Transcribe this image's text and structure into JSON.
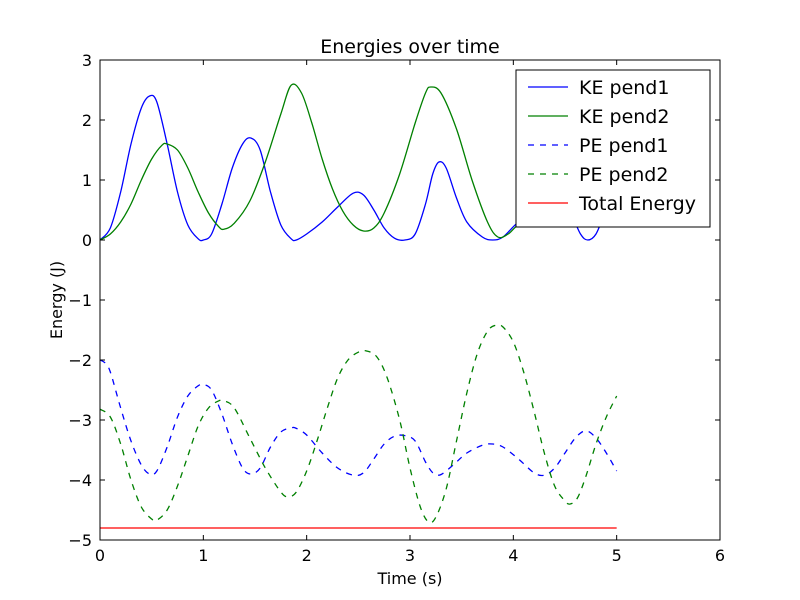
{
  "chart_data": {
    "type": "line",
    "title": "Energies over time",
    "xlabel": "Time (s)",
    "ylabel": "Energy (J)",
    "xlim": [
      0,
      6
    ],
    "ylim": [
      -5,
      3
    ],
    "xticks": [
      0,
      1,
      2,
      3,
      4,
      5,
      6
    ],
    "xtick_labels": [
      "0",
      "1",
      "2",
      "3",
      "4",
      "5",
      "6"
    ],
    "yticks": [
      -5,
      -4,
      -3,
      -2,
      -1,
      0,
      1,
      2,
      3
    ],
    "ytick_labels": [
      "−5",
      "−4",
      "−3",
      "−2",
      "−1",
      "0",
      "1",
      "2",
      "3"
    ],
    "grid": false,
    "legend_position": "top-right",
    "series": [
      {
        "name": "KE pend1",
        "color": "#0000ff",
        "style": "solid",
        "points": [
          [
            0,
            0
          ],
          [
            0.1,
            0.2
          ],
          [
            0.2,
            0.8
          ],
          [
            0.3,
            1.6
          ],
          [
            0.4,
            2.2
          ],
          [
            0.48,
            2.4
          ],
          [
            0.55,
            2.3
          ],
          [
            0.65,
            1.6
          ],
          [
            0.75,
            0.8
          ],
          [
            0.85,
            0.25
          ],
          [
            0.95,
            0.02
          ],
          [
            1.0,
            0
          ],
          [
            1.08,
            0.1
          ],
          [
            1.18,
            0.6
          ],
          [
            1.28,
            1.2
          ],
          [
            1.38,
            1.6
          ],
          [
            1.46,
            1.7
          ],
          [
            1.55,
            1.5
          ],
          [
            1.65,
            0.8
          ],
          [
            1.75,
            0.25
          ],
          [
            1.85,
            0.02
          ],
          [
            1.9,
            0
          ],
          [
            2.0,
            0.1
          ],
          [
            2.15,
            0.3
          ],
          [
            2.3,
            0.55
          ],
          [
            2.45,
            0.78
          ],
          [
            2.55,
            0.75
          ],
          [
            2.65,
            0.5
          ],
          [
            2.75,
            0.2
          ],
          [
            2.85,
            0.03
          ],
          [
            2.95,
            0
          ],
          [
            3.05,
            0.1
          ],
          [
            3.15,
            0.6
          ],
          [
            3.22,
            1.1
          ],
          [
            3.28,
            1.3
          ],
          [
            3.35,
            1.2
          ],
          [
            3.45,
            0.7
          ],
          [
            3.55,
            0.3
          ],
          [
            3.7,
            0.05
          ],
          [
            3.8,
            0
          ],
          [
            3.9,
            0.05
          ],
          [
            4.05,
            0.3
          ],
          [
            4.2,
            0.42
          ],
          [
            4.35,
            0.3
          ],
          [
            4.45,
            0.5
          ],
          [
            4.55,
            0.45
          ],
          [
            4.65,
            0.1
          ],
          [
            4.72,
            0
          ],
          [
            4.8,
            0.1
          ],
          [
            4.9,
            0.5
          ],
          [
            5.0,
            0.75
          ]
        ]
      },
      {
        "name": "KE pend2",
        "color": "#008000",
        "style": "solid",
        "points": [
          [
            0,
            0
          ],
          [
            0.1,
            0.1
          ],
          [
            0.2,
            0.3
          ],
          [
            0.3,
            0.6
          ],
          [
            0.4,
            1.0
          ],
          [
            0.5,
            1.35
          ],
          [
            0.6,
            1.58
          ],
          [
            0.65,
            1.6
          ],
          [
            0.75,
            1.5
          ],
          [
            0.85,
            1.2
          ],
          [
            0.95,
            0.8
          ],
          [
            1.05,
            0.45
          ],
          [
            1.15,
            0.22
          ],
          [
            1.2,
            0.18
          ],
          [
            1.3,
            0.28
          ],
          [
            1.45,
            0.65
          ],
          [
            1.6,
            1.3
          ],
          [
            1.75,
            2.1
          ],
          [
            1.85,
            2.58
          ],
          [
            1.95,
            2.45
          ],
          [
            2.05,
            1.95
          ],
          [
            2.15,
            1.35
          ],
          [
            2.25,
            0.85
          ],
          [
            2.35,
            0.48
          ],
          [
            2.45,
            0.25
          ],
          [
            2.55,
            0.15
          ],
          [
            2.65,
            0.2
          ],
          [
            2.75,
            0.45
          ],
          [
            2.9,
            1.1
          ],
          [
            3.05,
            1.95
          ],
          [
            3.15,
            2.45
          ],
          [
            3.2,
            2.55
          ],
          [
            3.3,
            2.45
          ],
          [
            3.45,
            1.85
          ],
          [
            3.6,
            1.0
          ],
          [
            3.75,
            0.3
          ],
          [
            3.85,
            0.05
          ],
          [
            3.95,
            0.1
          ],
          [
            4.05,
            0.25
          ],
          [
            4.2,
            0.3
          ],
          [
            4.35,
            0.3
          ],
          [
            4.5,
            0.35
          ],
          [
            4.6,
            0.25
          ],
          [
            4.7,
            0.5
          ],
          [
            4.85,
            0.8
          ],
          [
            5.0,
            0.95
          ]
        ]
      },
      {
        "name": "PE pend1",
        "color": "#0000ff",
        "style": "dashed",
        "points": [
          [
            0,
            -2.0
          ],
          [
            0.05,
            -2.05
          ],
          [
            0.1,
            -2.2
          ],
          [
            0.2,
            -2.8
          ],
          [
            0.3,
            -3.35
          ],
          [
            0.4,
            -3.75
          ],
          [
            0.48,
            -3.9
          ],
          [
            0.55,
            -3.85
          ],
          [
            0.65,
            -3.45
          ],
          [
            0.75,
            -2.95
          ],
          [
            0.85,
            -2.6
          ],
          [
            0.95,
            -2.43
          ],
          [
            1.0,
            -2.41
          ],
          [
            1.08,
            -2.5
          ],
          [
            1.18,
            -2.9
          ],
          [
            1.28,
            -3.4
          ],
          [
            1.38,
            -3.8
          ],
          [
            1.46,
            -3.9
          ],
          [
            1.55,
            -3.8
          ],
          [
            1.65,
            -3.45
          ],
          [
            1.75,
            -3.2
          ],
          [
            1.85,
            -3.13
          ],
          [
            1.9,
            -3.14
          ],
          [
            2.0,
            -3.25
          ],
          [
            2.15,
            -3.55
          ],
          [
            2.3,
            -3.8
          ],
          [
            2.45,
            -3.92
          ],
          [
            2.55,
            -3.88
          ],
          [
            2.65,
            -3.65
          ],
          [
            2.75,
            -3.4
          ],
          [
            2.85,
            -3.27
          ],
          [
            2.95,
            -3.26
          ],
          [
            3.05,
            -3.35
          ],
          [
            3.15,
            -3.7
          ],
          [
            3.22,
            -3.88
          ],
          [
            3.28,
            -3.92
          ],
          [
            3.35,
            -3.85
          ],
          [
            3.45,
            -3.7
          ],
          [
            3.55,
            -3.55
          ],
          [
            3.7,
            -3.42
          ],
          [
            3.8,
            -3.4
          ],
          [
            3.9,
            -3.45
          ],
          [
            4.05,
            -3.65
          ],
          [
            4.2,
            -3.88
          ],
          [
            4.3,
            -3.92
          ],
          [
            4.4,
            -3.8
          ],
          [
            4.5,
            -3.55
          ],
          [
            4.6,
            -3.3
          ],
          [
            4.7,
            -3.18
          ],
          [
            4.8,
            -3.3
          ],
          [
            4.9,
            -3.55
          ],
          [
            5.0,
            -3.85
          ]
        ]
      },
      {
        "name": "PE pend2",
        "color": "#008000",
        "style": "dashed",
        "points": [
          [
            0,
            -2.82
          ],
          [
            0.1,
            -2.95
          ],
          [
            0.2,
            -3.4
          ],
          [
            0.3,
            -4.0
          ],
          [
            0.4,
            -4.45
          ],
          [
            0.5,
            -4.65
          ],
          [
            0.55,
            -4.67
          ],
          [
            0.65,
            -4.5
          ],
          [
            0.75,
            -4.1
          ],
          [
            0.85,
            -3.6
          ],
          [
            0.95,
            -3.1
          ],
          [
            1.05,
            -2.8
          ],
          [
            1.15,
            -2.68
          ],
          [
            1.2,
            -2.68
          ],
          [
            1.3,
            -2.8
          ],
          [
            1.45,
            -3.3
          ],
          [
            1.6,
            -3.8
          ],
          [
            1.75,
            -4.2
          ],
          [
            1.82,
            -4.28
          ],
          [
            1.9,
            -4.2
          ],
          [
            2.0,
            -3.85
          ],
          [
            2.1,
            -3.35
          ],
          [
            2.2,
            -2.8
          ],
          [
            2.3,
            -2.3
          ],
          [
            2.4,
            -2.0
          ],
          [
            2.5,
            -1.87
          ],
          [
            2.58,
            -1.85
          ],
          [
            2.68,
            -1.95
          ],
          [
            2.78,
            -2.3
          ],
          [
            2.9,
            -3.0
          ],
          [
            3.0,
            -3.8
          ],
          [
            3.1,
            -4.45
          ],
          [
            3.18,
            -4.7
          ],
          [
            3.25,
            -4.62
          ],
          [
            3.35,
            -4.15
          ],
          [
            3.45,
            -3.35
          ],
          [
            3.55,
            -2.55
          ],
          [
            3.65,
            -1.9
          ],
          [
            3.75,
            -1.52
          ],
          [
            3.83,
            -1.42
          ],
          [
            3.9,
            -1.45
          ],
          [
            4.0,
            -1.7
          ],
          [
            4.1,
            -2.2
          ],
          [
            4.2,
            -2.85
          ],
          [
            4.3,
            -3.55
          ],
          [
            4.4,
            -4.1
          ],
          [
            4.5,
            -4.35
          ],
          [
            4.55,
            -4.4
          ],
          [
            4.62,
            -4.3
          ],
          [
            4.7,
            -3.95
          ],
          [
            4.8,
            -3.4
          ],
          [
            4.9,
            -2.95
          ],
          [
            5.0,
            -2.6
          ]
        ]
      },
      {
        "name": "Total Energy",
        "color": "#ff0000",
        "style": "solid",
        "points": [
          [
            0,
            -4.8
          ],
          [
            5.0,
            -4.8
          ]
        ]
      }
    ]
  }
}
